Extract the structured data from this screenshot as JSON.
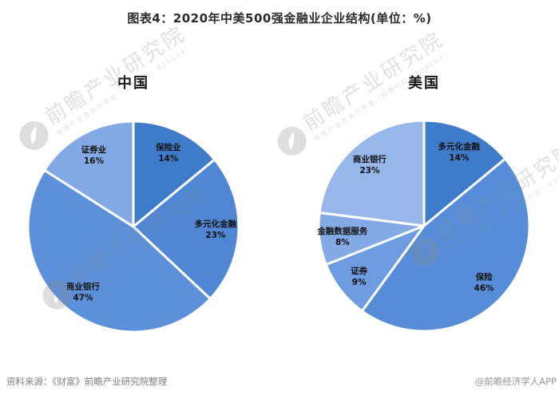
{
  "page": {
    "title": "图表4：2020年中美500强金融业企业结构(单位：%)"
  },
  "chart_data": [
    {
      "type": "pie",
      "title": "中国",
      "unit": "%",
      "start_angle": "12-oclock",
      "direction": "clockwise",
      "legend_position": "none",
      "categories": [
        "保险业",
        "多元化金融",
        "商业银行",
        "证券业"
      ],
      "values": [
        14,
        23,
        47,
        16
      ],
      "colors": [
        "#3E7CC9",
        "#4F87D4",
        "#5C90DB",
        "#83A9E4"
      ]
    },
    {
      "type": "pie",
      "title": "美国",
      "unit": "%",
      "start_angle": "12-oclock",
      "direction": "clockwise",
      "legend_position": "none",
      "categories": [
        "多元化金融",
        "保险",
        "证券",
        "金融数据服务",
        "商业银行"
      ],
      "values": [
        14,
        46,
        9,
        8,
        23
      ],
      "colors": [
        "#3E7CC9",
        "#578DD8",
        "#6D9CE0",
        "#84AAE5",
        "#97B7EA"
      ]
    }
  ],
  "watermark": {
    "brand": "前瞻产业研究院",
    "tagline": "中国产业咨询领导者（股票代码：839599）",
    "color": "#8C8C8C"
  },
  "footer": {
    "source": "资料来源：《财富》前瞻产业研究院整理",
    "credit": "@前瞻经济学人APP"
  }
}
